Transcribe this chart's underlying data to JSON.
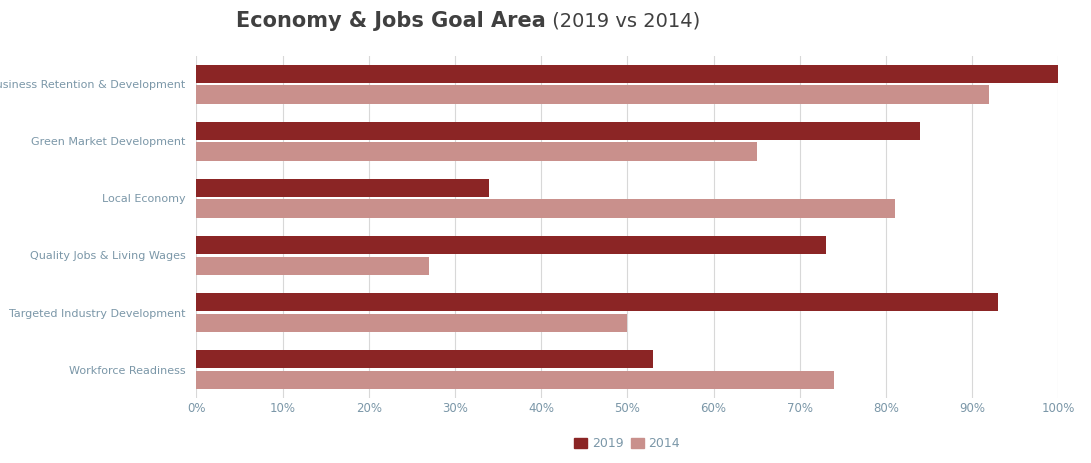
{
  "title_bold": "Economy & Jobs Goal Area",
  "title_light": " (2019 vs 2014)",
  "categories": [
    "Business Retention & Development",
    "Green Market Development",
    "Local Economy",
    "Quality Jobs & Living Wages",
    "Targeted Industry Development",
    "Workforce Readiness"
  ],
  "values_2019": [
    1.0,
    0.84,
    0.34,
    0.73,
    0.93,
    0.53
  ],
  "values_2014": [
    0.92,
    0.65,
    0.81,
    0.27,
    0.5,
    0.74
  ],
  "color_2019": "#8B2525",
  "color_2014": "#C9908C",
  "background_color": "#FFFFFF",
  "label_color": "#7B97A8",
  "grid_color": "#D8D8D8",
  "title_color": "#404040",
  "legend_2019": "2019",
  "legend_2014": "2014",
  "xlim": [
    0,
    1.0
  ],
  "xtick_values": [
    0.0,
    0.1,
    0.2,
    0.3,
    0.4,
    0.5,
    0.6,
    0.7,
    0.8,
    0.9,
    1.0
  ],
  "xtick_labels": [
    "0%",
    "10%",
    "20%",
    "30%",
    "40%",
    "50%",
    "60%",
    "70%",
    "80%",
    "90%",
    "100%"
  ],
  "bar_height": 0.32,
  "bar_gap": 0.04
}
